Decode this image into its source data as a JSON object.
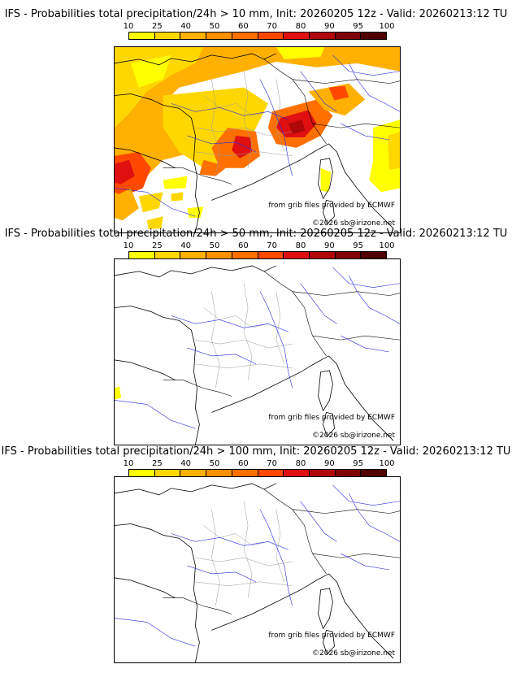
{
  "colorbar": {
    "ticks": [
      "10",
      "25",
      "40",
      "50",
      "60",
      "70",
      "80",
      "90",
      "95",
      "100"
    ],
    "colors": [
      "#ffff00",
      "#ffd700",
      "#ffb000",
      "#ff9000",
      "#ff7000",
      "#ff4800",
      "#e01010",
      "#b00808",
      "#800404",
      "#500000"
    ]
  },
  "panels": [
    {
      "title": "IFS - Probabilities total precipitation/24h > 10 mm, Init: 20260205 12z - Valid: 20260213:12 TU",
      "credit_source": "from grib files provided by ECMWF",
      "credit_site": "©2026 sb@irizone.net"
    },
    {
      "title": "IFS - Probabilities total precipitation/24h > 50 mm, Init: 20260205 12z - Valid: 20260213:12 TU",
      "credit_source": "from grib files provided by ECMWF",
      "credit_site": "©2026 sb@irizone.net"
    },
    {
      "title": "IFS - Probabilities total precipitation/24h > 100 mm, Init: 20260205 12z - Valid: 20260213:12 TU",
      "credit_source": "from grib files provided by ECMWF",
      "credit_site": "©2026 sb@irizone.net"
    }
  ]
}
